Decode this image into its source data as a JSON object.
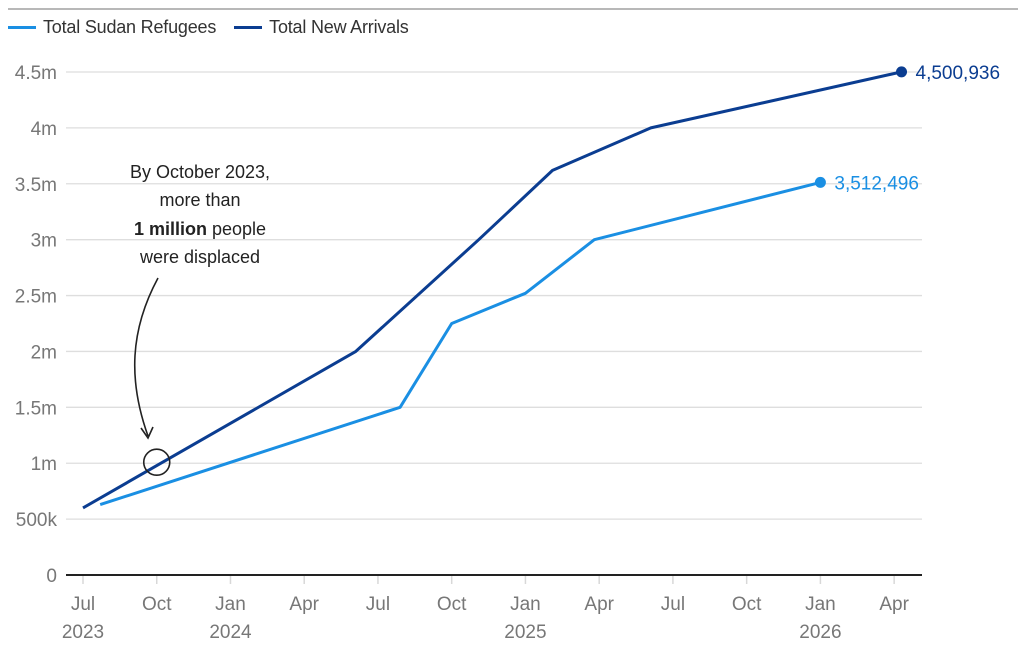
{
  "legend": [
    {
      "label": "Total Sudan Refugees",
      "color": "#1a8fe3"
    },
    {
      "label": "Total New Arrivals",
      "color": "#0b3d91"
    }
  ],
  "annotation": {
    "line1": "By October 2023,",
    "line2": "more than",
    "line3_bold": "1 million",
    "line3_rest": " people",
    "line4": "were displaced",
    "target_date_months": 3,
    "target_value": 1000000
  },
  "chart_data": {
    "type": "line",
    "title": "",
    "xlabel": "",
    "ylabel": "",
    "x_start": "Jul 2023",
    "x_unit": "months since Jul 2023",
    "xlim": [
      0,
      34
    ],
    "ylim": [
      0,
      4500000
    ],
    "grid": true,
    "legend_position": "top-left",
    "y_ticks": [
      {
        "value": 0,
        "label": "0"
      },
      {
        "value": 500000,
        "label": "500k"
      },
      {
        "value": 1000000,
        "label": "1m"
      },
      {
        "value": 1500000,
        "label": "1.5m"
      },
      {
        "value": 2000000,
        "label": "2m"
      },
      {
        "value": 2500000,
        "label": "2.5m"
      },
      {
        "value": 3000000,
        "label": "3m"
      },
      {
        "value": 3500000,
        "label": "3.5m"
      },
      {
        "value": 4000000,
        "label": "4m"
      },
      {
        "value": 4500000,
        "label": "4.5m"
      }
    ],
    "x_ticks": [
      {
        "month": 0,
        "label": "Jul",
        "year": "2023"
      },
      {
        "month": 3,
        "label": "Oct",
        "year": ""
      },
      {
        "month": 6,
        "label": "Jan",
        "year": "2024"
      },
      {
        "month": 9,
        "label": "Apr",
        "year": ""
      },
      {
        "month": 12,
        "label": "Jul",
        "year": ""
      },
      {
        "month": 15,
        "label": "Oct",
        "year": ""
      },
      {
        "month": 18,
        "label": "Jan",
        "year": "2025"
      },
      {
        "month": 21,
        "label": "Apr",
        "year": ""
      },
      {
        "month": 24,
        "label": "Jul",
        "year": ""
      },
      {
        "month": 27,
        "label": "Oct",
        "year": ""
      },
      {
        "month": 30,
        "label": "Jan",
        "year": "2026"
      },
      {
        "month": 33,
        "label": "Apr",
        "year": ""
      }
    ],
    "series": [
      {
        "name": "Total Sudan Refugees",
        "color": "#1a8fe3",
        "points": [
          {
            "x": 0.7,
            "y": 630000
          },
          {
            "x": 12.9,
            "y": 1500000
          },
          {
            "x": 15.0,
            "y": 2250000
          },
          {
            "x": 18.0,
            "y": 2520000
          },
          {
            "x": 20.8,
            "y": 3000000
          },
          {
            "x": 30.0,
            "y": 3512496
          }
        ],
        "end_label": "3,512,496"
      },
      {
        "name": "Total New Arrivals",
        "color": "#0b3d91",
        "points": [
          {
            "x": 0.0,
            "y": 600000
          },
          {
            "x": 11.1,
            "y": 2000000
          },
          {
            "x": 16.1,
            "y": 3000000
          },
          {
            "x": 19.1,
            "y": 3620000
          },
          {
            "x": 23.1,
            "y": 4000000
          },
          {
            "x": 33.3,
            "y": 4500936
          }
        ],
        "end_label": "4,500,936"
      }
    ]
  }
}
